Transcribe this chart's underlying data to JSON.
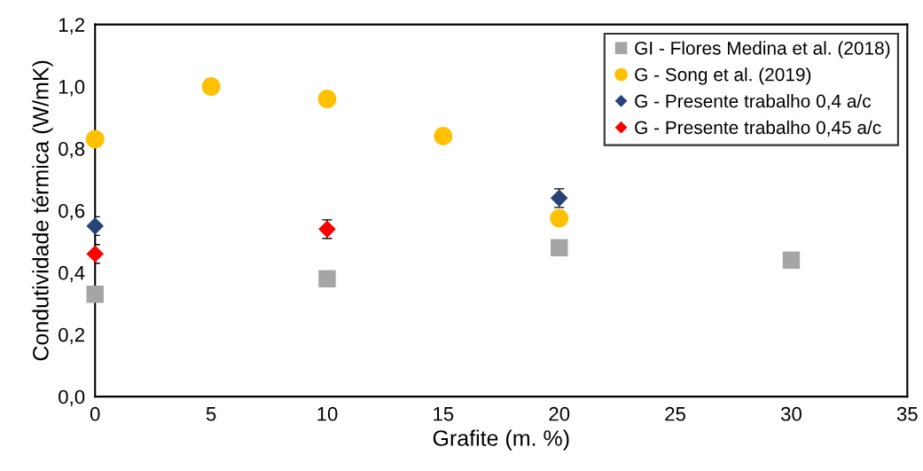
{
  "chart_data": {
    "type": "scatter",
    "xlabel": "Grafite (m. %)",
    "ylabel": "Condutividade térmica (W/mK)",
    "xlim": [
      0,
      35
    ],
    "xticks": [
      0,
      5,
      10,
      15,
      20,
      25,
      30,
      35
    ],
    "ylim": [
      0,
      1.2
    ],
    "yticks": [
      {
        "value": 0,
        "label": "0,0"
      },
      {
        "value": 0.2,
        "label": "0,2"
      },
      {
        "value": 0.4,
        "label": "0,4"
      },
      {
        "value": 0.6,
        "label": "0,6"
      },
      {
        "value": 0.8,
        "label": "0,8"
      },
      {
        "value": 1.0,
        "label": "1,0"
      },
      {
        "value": 1.2,
        "label": "1,2"
      }
    ],
    "grid": false,
    "legend": "top right",
    "series": [
      {
        "name": "GI - Flores Medina et al. (2018)",
        "color": "#a5a5a5",
        "marker": "square",
        "x": [
          0,
          10,
          20,
          30
        ],
        "values": [
          0.33,
          0.38,
          0.48,
          0.44
        ]
      },
      {
        "name": "G - Song et al. (2019)",
        "color": "#ffc000",
        "marker": "circle",
        "x": [
          0,
          5,
          10,
          15,
          20
        ],
        "values": [
          0.83,
          1.0,
          0.96,
          0.84,
          0.575
        ]
      },
      {
        "name": "G - Presente trabalho 0,4 a/c",
        "color": "#264478",
        "marker": "diamond",
        "x": [
          0,
          20
        ],
        "values": [
          0.55,
          0.64
        ],
        "errors": [
          0.03,
          0.03
        ]
      },
      {
        "name": "G - Presente trabalho 0,45 a/c",
        "color": "#ff0000",
        "marker": "diamond",
        "x": [
          0,
          10
        ],
        "values": [
          0.46,
          0.54
        ],
        "errors": [
          0.03,
          0.03
        ]
      }
    ]
  }
}
